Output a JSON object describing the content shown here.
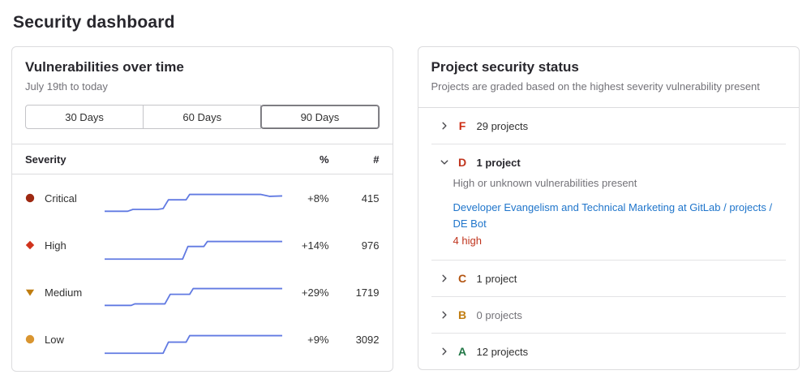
{
  "page": {
    "title": "Security dashboard"
  },
  "vuln_panel": {
    "title": "Vulnerabilities over time",
    "date_range": "July 19th to today",
    "day_filters": [
      {
        "label": "30 Days",
        "selected": false
      },
      {
        "label": "60 Days",
        "selected": false
      },
      {
        "label": "90 Days",
        "selected": true
      }
    ],
    "table": {
      "severity_header": "Severity",
      "percent_header": "%",
      "count_header": "#",
      "spark_color": "#617ae2",
      "rows": [
        {
          "severity": "Critical",
          "icon": "critical-severity-icon",
          "icon_color": "#9e2912",
          "change": "+8%",
          "count": "415",
          "spark": [
            [
              0,
              30
            ],
            [
              13,
              30
            ],
            [
              16,
              27.5
            ],
            [
              30,
              27.5
            ],
            [
              33,
              26.5
            ],
            [
              36,
              15
            ],
            [
              46,
              15
            ],
            [
              48,
              8
            ],
            [
              88,
              8
            ],
            [
              93,
              10.5
            ],
            [
              100,
              10
            ]
          ]
        },
        {
          "severity": "High",
          "icon": "high-severity-icon",
          "icon_color": "#d0331c",
          "change": "+14%",
          "count": "976",
          "spark": [
            [
              0,
              31
            ],
            [
              44,
              31
            ],
            [
              47,
              14.5
            ],
            [
              56,
              14.5
            ],
            [
              58,
              8
            ],
            [
              100,
              8
            ]
          ]
        },
        {
          "severity": "Medium",
          "icon": "medium-severity-icon",
          "icon_color": "#bf7c0f",
          "change": "+29%",
          "count": "1719",
          "spark": [
            [
              0,
              30
            ],
            [
              15,
              30
            ],
            [
              17,
              28
            ],
            [
              34,
              28
            ],
            [
              37,
              15.5
            ],
            [
              48,
              15.5
            ],
            [
              50,
              8
            ],
            [
              100,
              8
            ]
          ]
        },
        {
          "severity": "Low",
          "icon": "low-severity-icon",
          "icon_color": "#d99530",
          "change": "+9%",
          "count": "3092",
          "spark": [
            [
              0,
              31
            ],
            [
              33,
              31
            ],
            [
              36,
              16.5
            ],
            [
              46,
              16.5
            ],
            [
              48,
              8
            ],
            [
              100,
              8
            ]
          ]
        }
      ]
    }
  },
  "status_panel": {
    "title": "Project security status",
    "subtitle": "Projects are graded based on the highest severity vulnerability present",
    "grades": [
      {
        "grade": "F",
        "color": "#cd2a10",
        "count_label": "29 projects",
        "expanded": false
      },
      {
        "grade": "D",
        "color": "#c0341d",
        "count_label": "1 project",
        "expanded": true,
        "description": "High or unknown vulnerabilities present",
        "project_link": "Developer Evangelism and Technical Marketing at GitLab / projects / DE Bot",
        "finding": "4 high",
        "finding_color": "#c0341d"
      },
      {
        "grade": "C",
        "color": "#b35410",
        "count_label": "1 project",
        "expanded": false
      },
      {
        "grade": "B",
        "color": "#c17d10",
        "count_label": "0 projects",
        "expanded": false
      },
      {
        "grade": "A",
        "color": "#217645",
        "count_label": "12 projects",
        "expanded": false
      }
    ]
  }
}
